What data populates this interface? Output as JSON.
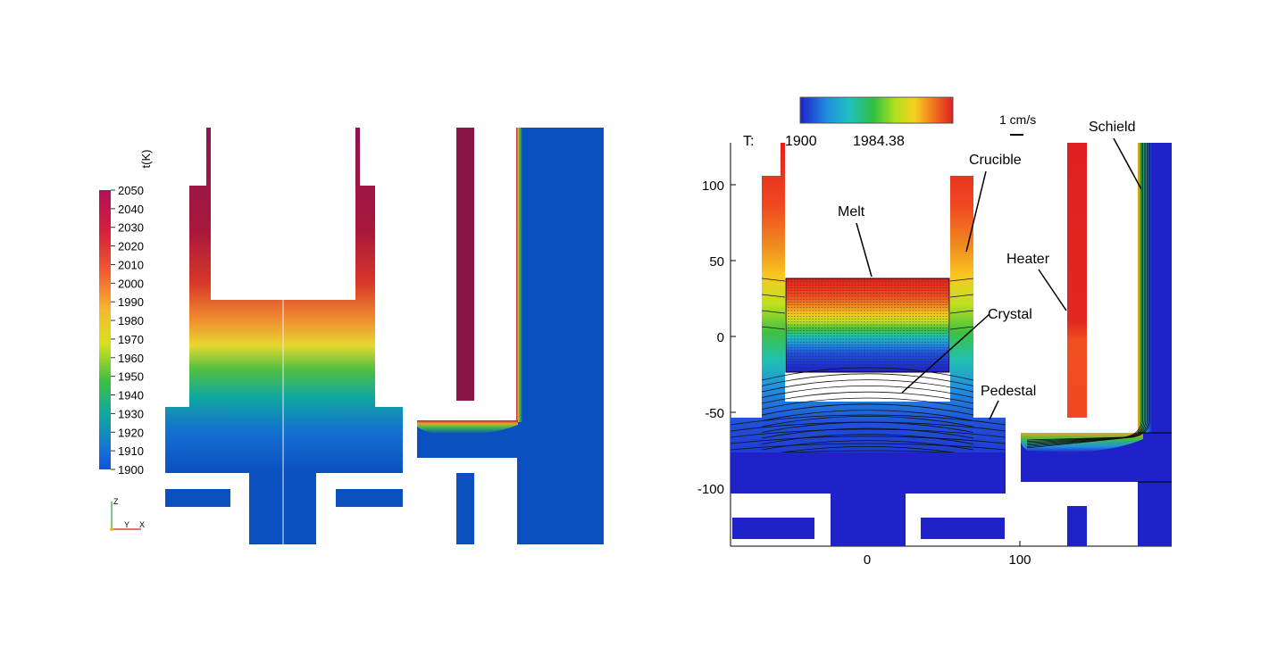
{
  "left_panel": {
    "colorbar_title": "t(K)",
    "colorbar_ticks": [
      "2050",
      "2040",
      "2030",
      "2020",
      "2010",
      "2000",
      "1990",
      "1980",
      "1970",
      "1960",
      "1950",
      "1940",
      "1930",
      "1920",
      "1910",
      "1900"
    ],
    "axes_triad": {
      "z": "Z",
      "y": "Y",
      "x": "X"
    }
  },
  "right_panel": {
    "legend_label": "T:",
    "legend_min": "1900",
    "legend_max": "1984.38",
    "scale_label": "1 cm/s",
    "y_ticks": [
      "100",
      "50",
      "0",
      "-50",
      "-100"
    ],
    "x_ticks": [
      "0",
      "100"
    ],
    "callouts": {
      "crucible": "Crucible",
      "melt": "Melt",
      "crystal": "Crystal",
      "heater": "Heater",
      "pedestal": "Pedestal",
      "schield": "Schield"
    }
  },
  "colors": {
    "cold_blue": "#0a50c0",
    "deep_blue": "#1e22c8",
    "hot_red": "#8a1548",
    "heater_red": "#e02020"
  }
}
